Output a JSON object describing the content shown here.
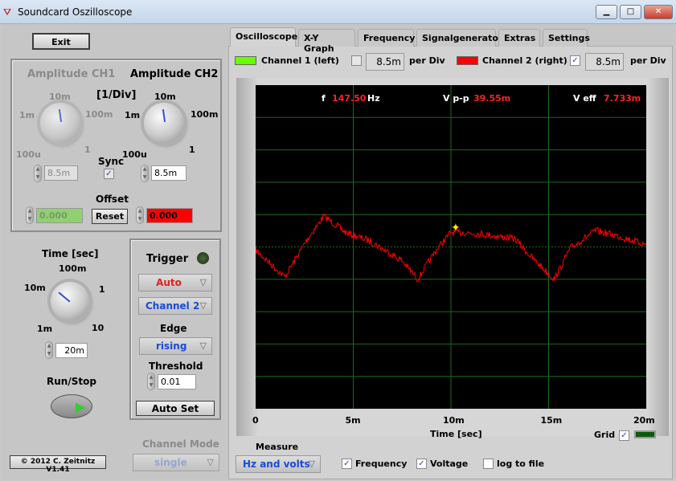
{
  "window": {
    "title": "Soundcard Oszilloscope",
    "min": "▁",
    "max": "□",
    "close": "✕"
  },
  "left": {
    "exit": "Exit",
    "amp_ch1": "Amplitude CH1",
    "amp_ch2": "Amplitude CH2",
    "unit": "[1/Div]",
    "knob_labels": {
      "a": "1m",
      "b": "10m",
      "c": "100m",
      "d": "100u",
      "e": "1"
    },
    "ch1_value": "8.5m",
    "ch2_value": "8.5m",
    "sync": "Sync",
    "sync_checked": true,
    "offset": "Offset",
    "offset_ch1": "0.000",
    "offset_ch2": "0.000",
    "reset": "Reset",
    "time": "Time [sec]",
    "time_labels": {
      "a": "100m",
      "b": "10m",
      "c": "1",
      "d": "1m",
      "e": "10"
    },
    "time_value": "20m",
    "run_stop": "Run/Stop",
    "copyright": "© 2012  C. Zeitnitz V1.41",
    "trigger": {
      "title": "Trigger",
      "mode": "Auto",
      "channel": "Channel 2",
      "edge_label": "Edge",
      "edge": "rising",
      "threshold_label": "Threshold",
      "threshold": "0.01",
      "auto_set": "Auto Set"
    },
    "channel_mode_label": "Channel Mode",
    "channel_mode": "single"
  },
  "tabs": [
    "Oscilloscope",
    "X-Y Graph",
    "Frequency",
    "Signalgenerator",
    "Extras",
    "Settings"
  ],
  "channels": {
    "ch1": "Channel 1 (left)",
    "ch1_checked": false,
    "ch1_div": "8.5m",
    "ch2": "Channel 2 (right)",
    "ch2_checked": true,
    "ch2_div": "8.5m",
    "per_div": "per Div",
    "ch1_color": "#66ff00",
    "ch2_color": "#ff0000"
  },
  "readouts": {
    "f_label": "f",
    "f_value": "147.50",
    "f_unit": "Hz",
    "vpp_label": "V p-p",
    "vpp_value": "39.55m",
    "veff_label": "V eff",
    "veff_value": "7.733m"
  },
  "axis": {
    "ticks": [
      "0",
      "5m",
      "10m",
      "15m",
      "20m"
    ],
    "xlabel": "Time [sec]",
    "grid_label": "Grid",
    "grid_checked": true
  },
  "trace": {
    "x_ms": [
      0,
      1.5,
      2.6,
      3.5,
      4.6,
      5.8,
      7.5,
      8.3,
      9.3,
      10,
      10.6,
      11.6,
      13.3,
      14.1,
      15.3,
      16.1,
      17.4,
      18.6,
      20
    ],
    "y_mV": [
      -0.8,
      -7.9,
      1.7,
      8.1,
      3.8,
      1.7,
      -3.6,
      -8.5,
      -0.4,
      3.8,
      3.8,
      3.4,
      2.1,
      -2.6,
      -8.5,
      -0.4,
      4.3,
      2.8,
      0.6
    ]
  },
  "measure": {
    "label": "Measure",
    "mode": "Hz and volts",
    "frequency": "Frequency",
    "frequency_checked": true,
    "voltage": "Voltage",
    "voltage_checked": true,
    "log": "log to file",
    "log_checked": false
  }
}
